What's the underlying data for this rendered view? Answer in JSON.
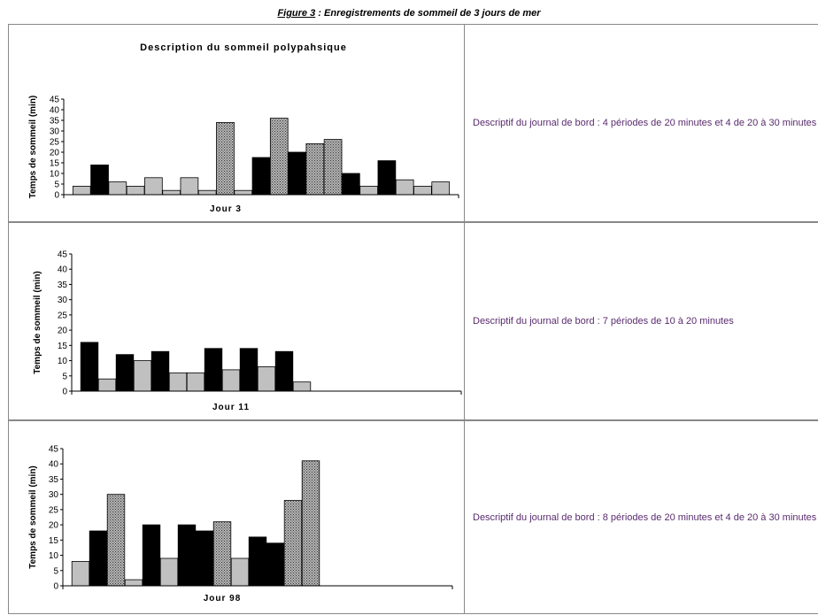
{
  "figure": {
    "label": "Figure 3",
    "caption_rest": " : Enregistrements de sommeil de 3 jours de mer"
  },
  "colors": {
    "light": "#c0c0c0",
    "dark": "#000000",
    "hatched": "#9a9a9a",
    "description": "#5a2b6e"
  },
  "chart_data": [
    {
      "type": "bar",
      "title": "Description du sommeil polypahsique",
      "xlabel": "Jour 3",
      "ylabel": "Temps de sommeil (min)",
      "ylim": [
        0,
        45
      ],
      "yticks": [
        0,
        5,
        10,
        15,
        20,
        25,
        30,
        35,
        40,
        45
      ],
      "values": [
        4,
        14,
        6,
        4,
        8,
        2,
        8,
        2,
        34,
        2,
        17.5,
        36,
        20,
        24,
        26,
        10,
        4,
        16,
        7,
        4,
        6
      ],
      "styles": [
        "light",
        "dark",
        "light",
        "light",
        "light",
        "light",
        "light",
        "light",
        "hatched",
        "light",
        "dark",
        "hatched",
        "dark",
        "hatched",
        "hatched",
        "dark",
        "light",
        "dark",
        "light",
        "light",
        "light"
      ],
      "slots": 22,
      "description": "Descriptif du journal de bord : 4 périodes de 20 minutes et 4 de 20 à 30 minutes"
    },
    {
      "type": "bar",
      "title": "",
      "xlabel": "Jour 11",
      "ylabel": "Temps de sommeil (min)",
      "ylim": [
        0,
        45
      ],
      "yticks": [
        0,
        5,
        10,
        15,
        20,
        25,
        30,
        35,
        40,
        45
      ],
      "values": [
        16,
        4,
        12,
        10,
        13,
        6,
        6,
        14,
        7,
        14,
        8,
        13,
        3
      ],
      "styles": [
        "dark",
        "light",
        "dark",
        "light",
        "dark",
        "light",
        "light",
        "dark",
        "light",
        "dark",
        "light",
        "dark",
        "light"
      ],
      "slots": 22,
      "description": "Descriptif du journal de bord : 7 périodes de 10 à 20 minutes"
    },
    {
      "type": "bar",
      "title": "",
      "xlabel": "Jour 98",
      "ylabel": "Temps de sommeil (min)",
      "ylim": [
        0,
        45
      ],
      "yticks": [
        0,
        5,
        10,
        15,
        20,
        25,
        30,
        35,
        40,
        45
      ],
      "values": [
        8,
        18,
        30,
        2,
        20,
        9,
        20,
        18,
        21,
        9,
        16,
        14,
        28,
        41
      ],
      "styles": [
        "light",
        "dark",
        "hatched",
        "light",
        "dark",
        "light",
        "dark",
        "dark",
        "hatched",
        "light",
        "dark",
        "dark",
        "hatched",
        "hatched"
      ],
      "slots": 22,
      "description": "Descriptif du journal de bord : 8 périodes de 20 minutes et 4 de 20 à 30 minutes"
    }
  ]
}
